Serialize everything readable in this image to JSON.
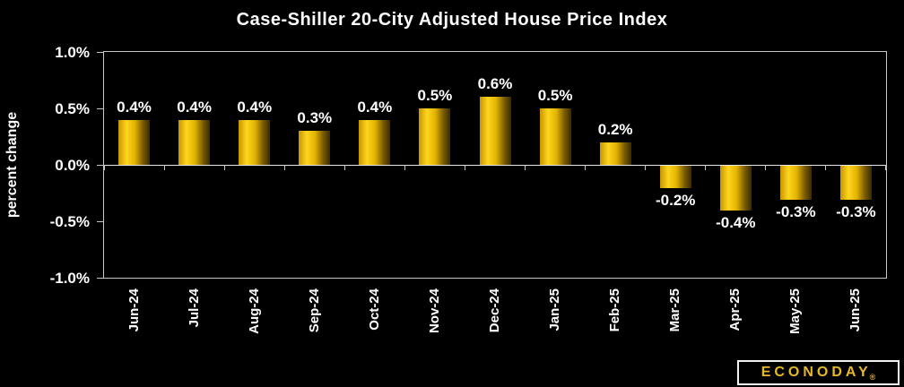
{
  "chart_data": {
    "type": "bar",
    "title": "Case-Shiller 20-City Adjusted House Price Index",
    "xlabel": "",
    "ylabel": "percent change",
    "categories": [
      "Jun-24",
      "Jul-24",
      "Aug-24",
      "Sep-24",
      "Oct-24",
      "Nov-24",
      "Dec-24",
      "Jan-25",
      "Feb-25",
      "Mar-25",
      "Apr-25",
      "May-25",
      "Jun-25"
    ],
    "values": [
      0.4,
      0.4,
      0.4,
      0.3,
      0.4,
      0.5,
      0.6,
      0.5,
      0.2,
      -0.2,
      -0.4,
      -0.3,
      -0.3
    ],
    "value_labels": [
      "0.4%",
      "0.4%",
      "0.4%",
      "0.3%",
      "0.4%",
      "0.5%",
      "0.6%",
      "0.5%",
      "0.2%",
      "-0.2%",
      "-0.4%",
      "-0.3%",
      "-0.3%"
    ],
    "y_ticks": [
      {
        "label": "1.0%",
        "value": 1.0
      },
      {
        "label": "0.5%",
        "value": 0.5
      },
      {
        "label": "0.0%",
        "value": 0.0
      },
      {
        "label": "-0.5%",
        "value": -0.5
      },
      {
        "label": "-1.0%",
        "value": -1.0
      }
    ],
    "ylim": [
      -1.0,
      1.0
    ],
    "grid": false,
    "legend": "none",
    "bar_gradient": [
      "#C69500",
      "#FFD51E",
      "#E3B400",
      "#7A5C00",
      "#3A2B00"
    ]
  },
  "colors": {
    "background": "#000000",
    "text": "#FFFFFF",
    "axis": "#C8C8C8",
    "zero_line": "#E6E6E6",
    "logo_gold": "#E9B829",
    "logo_border": "#F2F2F2"
  },
  "branding": {
    "logo_text": "ECONODAY",
    "registered_mark": "®"
  }
}
